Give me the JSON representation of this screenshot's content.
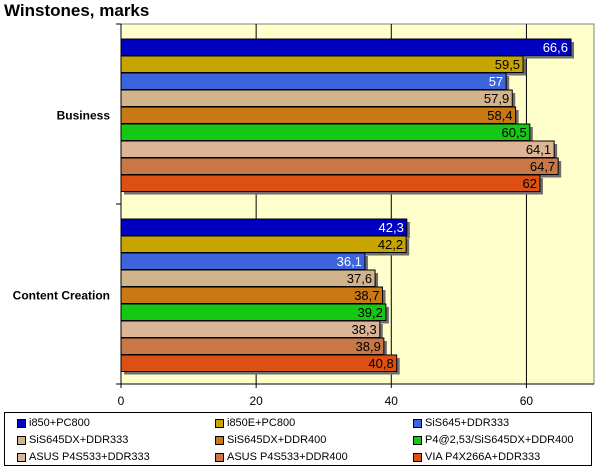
{
  "chart_data": {
    "type": "bar",
    "orientation": "horizontal",
    "title": "Winstones, marks",
    "categories": [
      "Business",
      "Content Creation"
    ],
    "series": [
      {
        "name": "i850+PC800",
        "values": [
          66.6,
          42.3
        ],
        "labels": [
          "66,6",
          "42,3"
        ],
        "color": "#0000c0",
        "label_color": "#ffffff"
      },
      {
        "name": "i850E+PC800",
        "values": [
          59.5,
          42.2
        ],
        "labels": [
          "59,5",
          "42,2"
        ],
        "color": "#c8a400",
        "label_color": "#000000"
      },
      {
        "name": "SiS645+DDR333",
        "values": [
          57,
          36.1
        ],
        "labels": [
          "57",
          "36,1"
        ],
        "color": "#3c64dc",
        "label_color": "#ffffff"
      },
      {
        "name": "SiS645DX+DDR333",
        "values": [
          57.9,
          37.6
        ],
        "labels": [
          "57,9",
          "37,6"
        ],
        "color": "#d2b48c",
        "label_color": "#000000"
      },
      {
        "name": "SiS645DX+DDR400",
        "values": [
          58.4,
          38.7
        ],
        "labels": [
          "58,4",
          "38,7"
        ],
        "color": "#c87814",
        "label_color": "#000000"
      },
      {
        "name": "P4@2,53/SiS645DX+DDR400",
        "values": [
          60.5,
          39.2
        ],
        "labels": [
          "60,5",
          "39,2"
        ],
        "color": "#14c814",
        "label_color": "#000000"
      },
      {
        "name": "ASUS P4S533+DDR333",
        "values": [
          64.1,
          38.3
        ],
        "labels": [
          "64,1",
          "38,3"
        ],
        "color": "#dcb496",
        "label_color": "#000000"
      },
      {
        "name": "ASUS P4S533+DDR400",
        "values": [
          64.7,
          38.9
        ],
        "labels": [
          "64,7",
          "38,9"
        ],
        "color": "#c87846",
        "label_color": "#000000"
      },
      {
        "name": "VIA P4X266A+DDR333",
        "values": [
          62,
          40.8
        ],
        "labels": [
          "62",
          "40,8"
        ],
        "color": "#dc5014",
        "label_color": "#000000"
      }
    ],
    "xlim": [
      0,
      70
    ],
    "xticks": [
      "0",
      "20",
      "40",
      "60"
    ],
    "tick_values": [
      0,
      20,
      40,
      60
    ],
    "grid": true,
    "plot_background": "#ffffcc",
    "legend_position": "bottom"
  }
}
